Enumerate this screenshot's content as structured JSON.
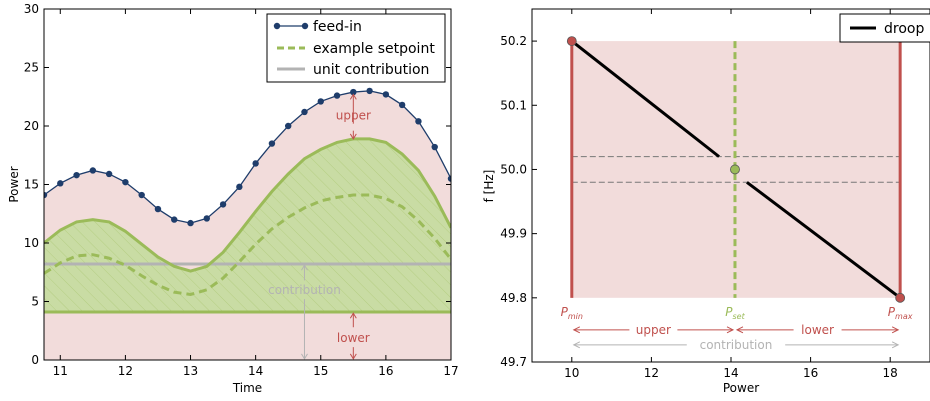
{
  "chart_data": [
    {
      "type": "area",
      "xlabel": "Time",
      "ylabel": "Power",
      "xlim": [
        10.75,
        17
      ],
      "ylim": [
        0,
        30
      ],
      "xticks": [
        11,
        12,
        13,
        14,
        15,
        16,
        17
      ],
      "yticks": [
        0,
        5,
        10,
        15,
        20,
        25,
        30
      ],
      "grid": false,
      "legend_position": "top-right",
      "legend": [
        {
          "label": "feed-in",
          "style": "line-marker",
          "color": "#1f3d6b"
        },
        {
          "label": "example setpoint",
          "style": "dashed",
          "color": "#9bbb59"
        },
        {
          "label": "unit contribution",
          "style": "line",
          "color": "#b3b3b3"
        }
      ],
      "series": [
        {
          "name": "feed-in",
          "color": "#1f3d6b",
          "x": [
            10.75,
            11.0,
            11.25,
            11.5,
            11.75,
            12.0,
            12.25,
            12.5,
            12.75,
            13.0,
            13.25,
            13.5,
            13.75,
            14.0,
            14.25,
            14.5,
            14.75,
            15.0,
            15.25,
            15.5,
            15.75,
            16.0,
            16.25,
            16.5,
            16.75,
            17.0
          ],
          "y": [
            14.1,
            15.1,
            15.8,
            16.2,
            15.9,
            15.2,
            14.1,
            12.9,
            12.0,
            11.7,
            12.1,
            13.3,
            14.8,
            16.8,
            18.5,
            20.0,
            21.2,
            22.1,
            22.6,
            22.9,
            23.0,
            22.7,
            21.8,
            20.4,
            18.2,
            15.5
          ]
        },
        {
          "name": "upper band",
          "color": "#9bbb59",
          "x": [
            10.75,
            11.0,
            11.25,
            11.5,
            11.75,
            12.0,
            12.25,
            12.5,
            12.75,
            13.0,
            13.25,
            13.5,
            13.75,
            14.0,
            14.25,
            14.5,
            14.75,
            15.0,
            15.25,
            15.5,
            15.75,
            16.0,
            16.25,
            16.5,
            16.75,
            17.0
          ],
          "y": [
            10.0,
            11.1,
            11.8,
            12.0,
            11.8,
            11.0,
            9.9,
            8.8,
            8.0,
            7.6,
            8.0,
            9.2,
            10.9,
            12.7,
            14.4,
            15.9,
            17.2,
            18.0,
            18.6,
            18.9,
            18.9,
            18.6,
            17.6,
            16.2,
            14.0,
            11.3
          ]
        },
        {
          "name": "example setpoint",
          "color": "#9bbb59",
          "x": [
            10.75,
            11.0,
            11.25,
            11.5,
            11.75,
            12.0,
            12.25,
            12.5,
            12.75,
            13.0,
            13.25,
            13.5,
            13.75,
            14.0,
            14.25,
            14.5,
            14.75,
            15.0,
            15.25,
            15.5,
            15.75,
            16.0,
            16.25,
            16.5,
            16.75,
            17.0
          ],
          "y": [
            7.4,
            8.3,
            8.9,
            9.0,
            8.7,
            8.1,
            7.2,
            6.4,
            5.8,
            5.6,
            6.0,
            7.0,
            8.4,
            9.9,
            11.2,
            12.2,
            13.0,
            13.6,
            13.9,
            14.1,
            14.1,
            13.8,
            13.1,
            11.9,
            10.4,
            8.6
          ]
        },
        {
          "name": "unit contribution",
          "color": "#b3b3b3",
          "x": [
            10.75,
            17.0
          ],
          "y": [
            8.2,
            8.2
          ]
        },
        {
          "name": "lower band",
          "color": "#9bbb59",
          "x": [
            10.75,
            17.0
          ],
          "y": [
            4.1,
            4.1
          ]
        }
      ],
      "annotations": [
        {
          "text": "upper",
          "x": 15.5,
          "y": 20.9,
          "color": "#c0504d"
        },
        {
          "text": "contribution",
          "x": 14.75,
          "y": 6.0,
          "color": "#b3b3b3"
        },
        {
          "text": "lower",
          "x": 15.5,
          "y": 1.9,
          "color": "#c0504d"
        }
      ]
    },
    {
      "type": "line",
      "xlabel": "Power",
      "ylabel": "f [Hz]",
      "xlim": [
        9,
        19
      ],
      "ylim": [
        49.7,
        50.25
      ],
      "xticks": [
        10,
        12,
        14,
        16,
        18
      ],
      "ytick_values": [
        49.7,
        49.8,
        49.9,
        50.0,
        50.1,
        50.2
      ],
      "ytick_labels": [
        "49.7",
        "49.8",
        "49.9",
        "50.0",
        "50.1",
        "50.2"
      ],
      "grid": false,
      "legend_position": "top-right",
      "legend": [
        {
          "label": "droop",
          "style": "line",
          "color": "#000000"
        }
      ],
      "band": {
        "x": [
          10,
          18.25
        ],
        "y": [
          49.8,
          50.2
        ],
        "color": "#f2dcdb"
      },
      "series": [
        {
          "name": "droop",
          "color": "#000000",
          "x": [
            10.0,
            13.7
          ],
          "y": [
            50.2,
            50.02
          ]
        },
        {
          "name": "droop",
          "color": "#000000",
          "x": [
            14.4,
            18.25
          ],
          "y": [
            49.98,
            49.8
          ]
        }
      ],
      "deadband_lines": [
        50.02,
        49.98
      ],
      "points": [
        {
          "x": 10.0,
          "y": 50.2,
          "color": "#c0504d"
        },
        {
          "x": 14.1,
          "y": 50.0,
          "color": "#9bbb59"
        },
        {
          "x": 18.25,
          "y": 49.8,
          "color": "#c0504d"
        }
      ],
      "vertical_lines": [
        {
          "x": 10.0,
          "color": "#c0504d",
          "style": "solid"
        },
        {
          "x": 14.1,
          "color": "#9bbb59",
          "style": "dashed"
        },
        {
          "x": 18.25,
          "color": "#c0504d",
          "style": "solid"
        }
      ],
      "point_labels": [
        {
          "main": "P",
          "sub": "min",
          "x": 10.0,
          "color": "#c0504d"
        },
        {
          "main": "P",
          "sub": "set",
          "x": 14.1,
          "color": "#9bbb59"
        },
        {
          "main": "P",
          "sub": "max",
          "x": 18.25,
          "color": "#c0504d"
        }
      ],
      "annotations": [
        {
          "text": "upper",
          "from": 10.0,
          "to": 14.1,
          "color": "#c0504d"
        },
        {
          "text": "lower",
          "from": 14.1,
          "to": 18.25,
          "color": "#c0504d"
        },
        {
          "text": "contribution",
          "from": 10.0,
          "to": 18.25,
          "color": "#b3b3b3"
        }
      ]
    }
  ]
}
